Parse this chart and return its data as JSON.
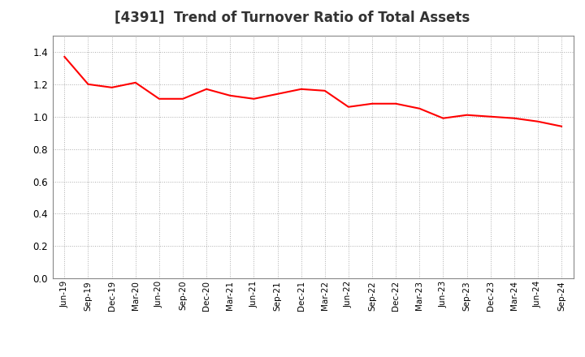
{
  "title": "[4391]  Trend of Turnover Ratio of Total Assets",
  "title_fontsize": 12,
  "title_fontweight": "bold",
  "line_color": "#FF0000",
  "line_width": 1.5,
  "background_color": "#FFFFFF",
  "grid_color": "#999999",
  "ylim": [
    0.0,
    1.5
  ],
  "yticks": [
    0.0,
    0.2,
    0.4,
    0.6,
    0.8,
    1.0,
    1.2,
    1.4
  ],
  "x_labels": [
    "Jun-19",
    "Sep-19",
    "Dec-19",
    "Mar-20",
    "Jun-20",
    "Sep-20",
    "Dec-20",
    "Mar-21",
    "Jun-21",
    "Sep-21",
    "Dec-21",
    "Mar-22",
    "Jun-22",
    "Sep-22",
    "Dec-22",
    "Mar-23",
    "Jun-23",
    "Sep-23",
    "Dec-23",
    "Mar-24",
    "Jun-24",
    "Sep-24"
  ],
  "values": [
    1.37,
    1.2,
    1.18,
    1.21,
    1.11,
    1.11,
    1.17,
    1.13,
    1.11,
    1.14,
    1.17,
    1.16,
    1.06,
    1.08,
    1.08,
    1.05,
    0.99,
    1.01,
    1.0,
    0.99,
    0.97,
    0.94
  ]
}
